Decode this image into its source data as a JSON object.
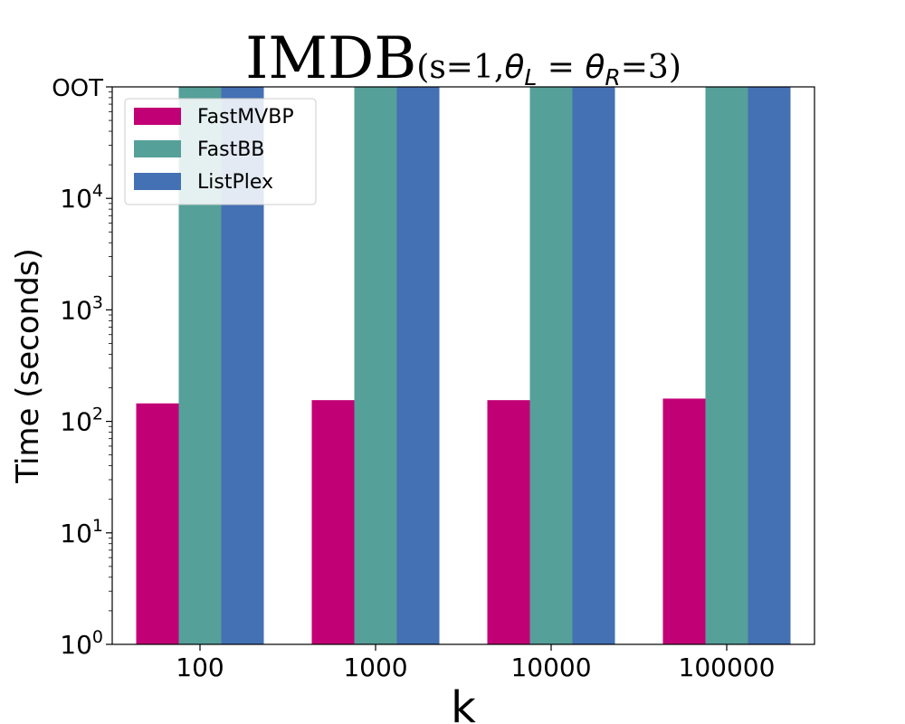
{
  "chart_data": {
    "type": "bar",
    "title": {
      "main": "IMDB",
      "sub_open": "(s=1,",
      "theta_l": "θ",
      "theta_l_sub": "L",
      "equals": " = ",
      "theta_r": "θ",
      "theta_r_sub": "R",
      "sub_close": "=3)"
    },
    "xlabel": "k",
    "ylabel": "Time (seconds)",
    "yscale": "log",
    "ylim": [
      1,
      100000
    ],
    "y_ticks": [
      {
        "base": "10",
        "exp": "0",
        "value": 1
      },
      {
        "base": "10",
        "exp": "1",
        "value": 10
      },
      {
        "base": "10",
        "exp": "2",
        "value": 100
      },
      {
        "base": "10",
        "exp": "3",
        "value": 1000
      },
      {
        "base": "10",
        "exp": "4",
        "value": 10000
      }
    ],
    "oot_label": "OOT",
    "oot_value": 100000,
    "categories": [
      "100",
      "1000",
      "10000",
      "100000"
    ],
    "series": [
      {
        "name": "FastMVBP",
        "color": "#c20075",
        "values": [
          145,
          155,
          155,
          160
        ]
      },
      {
        "name": "FastBB",
        "color": "#55a099",
        "values": [
          "OOT",
          "OOT",
          "OOT",
          "OOT"
        ]
      },
      {
        "name": "ListPlex",
        "color": "#4470b4",
        "values": [
          "OOT",
          "OOT",
          "OOT",
          "OOT"
        ]
      }
    ],
    "legend_position": "top-left"
  }
}
